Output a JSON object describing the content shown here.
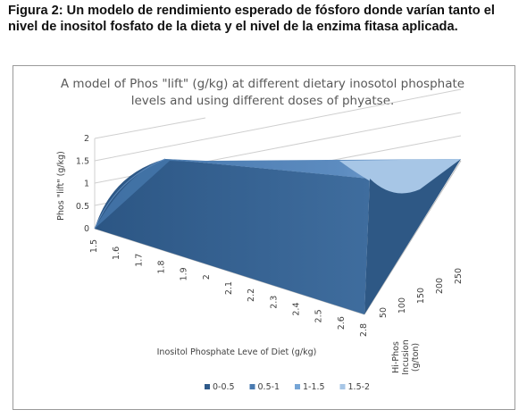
{
  "caption": "Figura 2: Un modelo de rendimiento esperado de fósforo donde varían tanto el nivel de inositol fosfato de la dieta y el nivel de la enzima fitasa aplicada.",
  "chart_data": {
    "type": "surface",
    "title_line1": "A model of Phos \"lift\" (g/kg) at different dietary inosotol phosphate",
    "title_line2": "levels and using different doses of phyatse.",
    "zlabel": "Phos \"lift\" (g/kg)",
    "xlabel": "Inositol Phosphate Leve of Diet (g/kg)",
    "ylabel_lines": [
      "Hi-Phos",
      "Incusion",
      "(g/ton)"
    ],
    "x_ticks": [
      "1.5",
      "1.6",
      "1.7",
      "1.8",
      "1.9",
      "2",
      "2.1",
      "2.2",
      "2.3",
      "2.4",
      "2.5",
      "2.6",
      "2.8"
    ],
    "y_ticks": [
      "50",
      "100",
      "150",
      "200",
      "250"
    ],
    "z_ticks": [
      "0",
      "0.5",
      "1",
      "1.5",
      "2"
    ],
    "zlim": [
      0,
      2
    ],
    "legend": [
      {
        "label": "0-0.5",
        "color": "#2f5a8a"
      },
      {
        "label": "0.5-1",
        "color": "#4a7bb0"
      },
      {
        "label": "1-1.5",
        "color": "#76a5d6"
      },
      {
        "label": "1.5-2",
        "color": "#a7c6e6"
      }
    ],
    "surface_z_at_corners": {
      "x_low_y_low": 0,
      "x_low_y_high": 1.45,
      "x_high_y_low": 0.05,
      "x_high_y_high": 1.45
    },
    "grid": true,
    "legend_position": "bottom"
  }
}
